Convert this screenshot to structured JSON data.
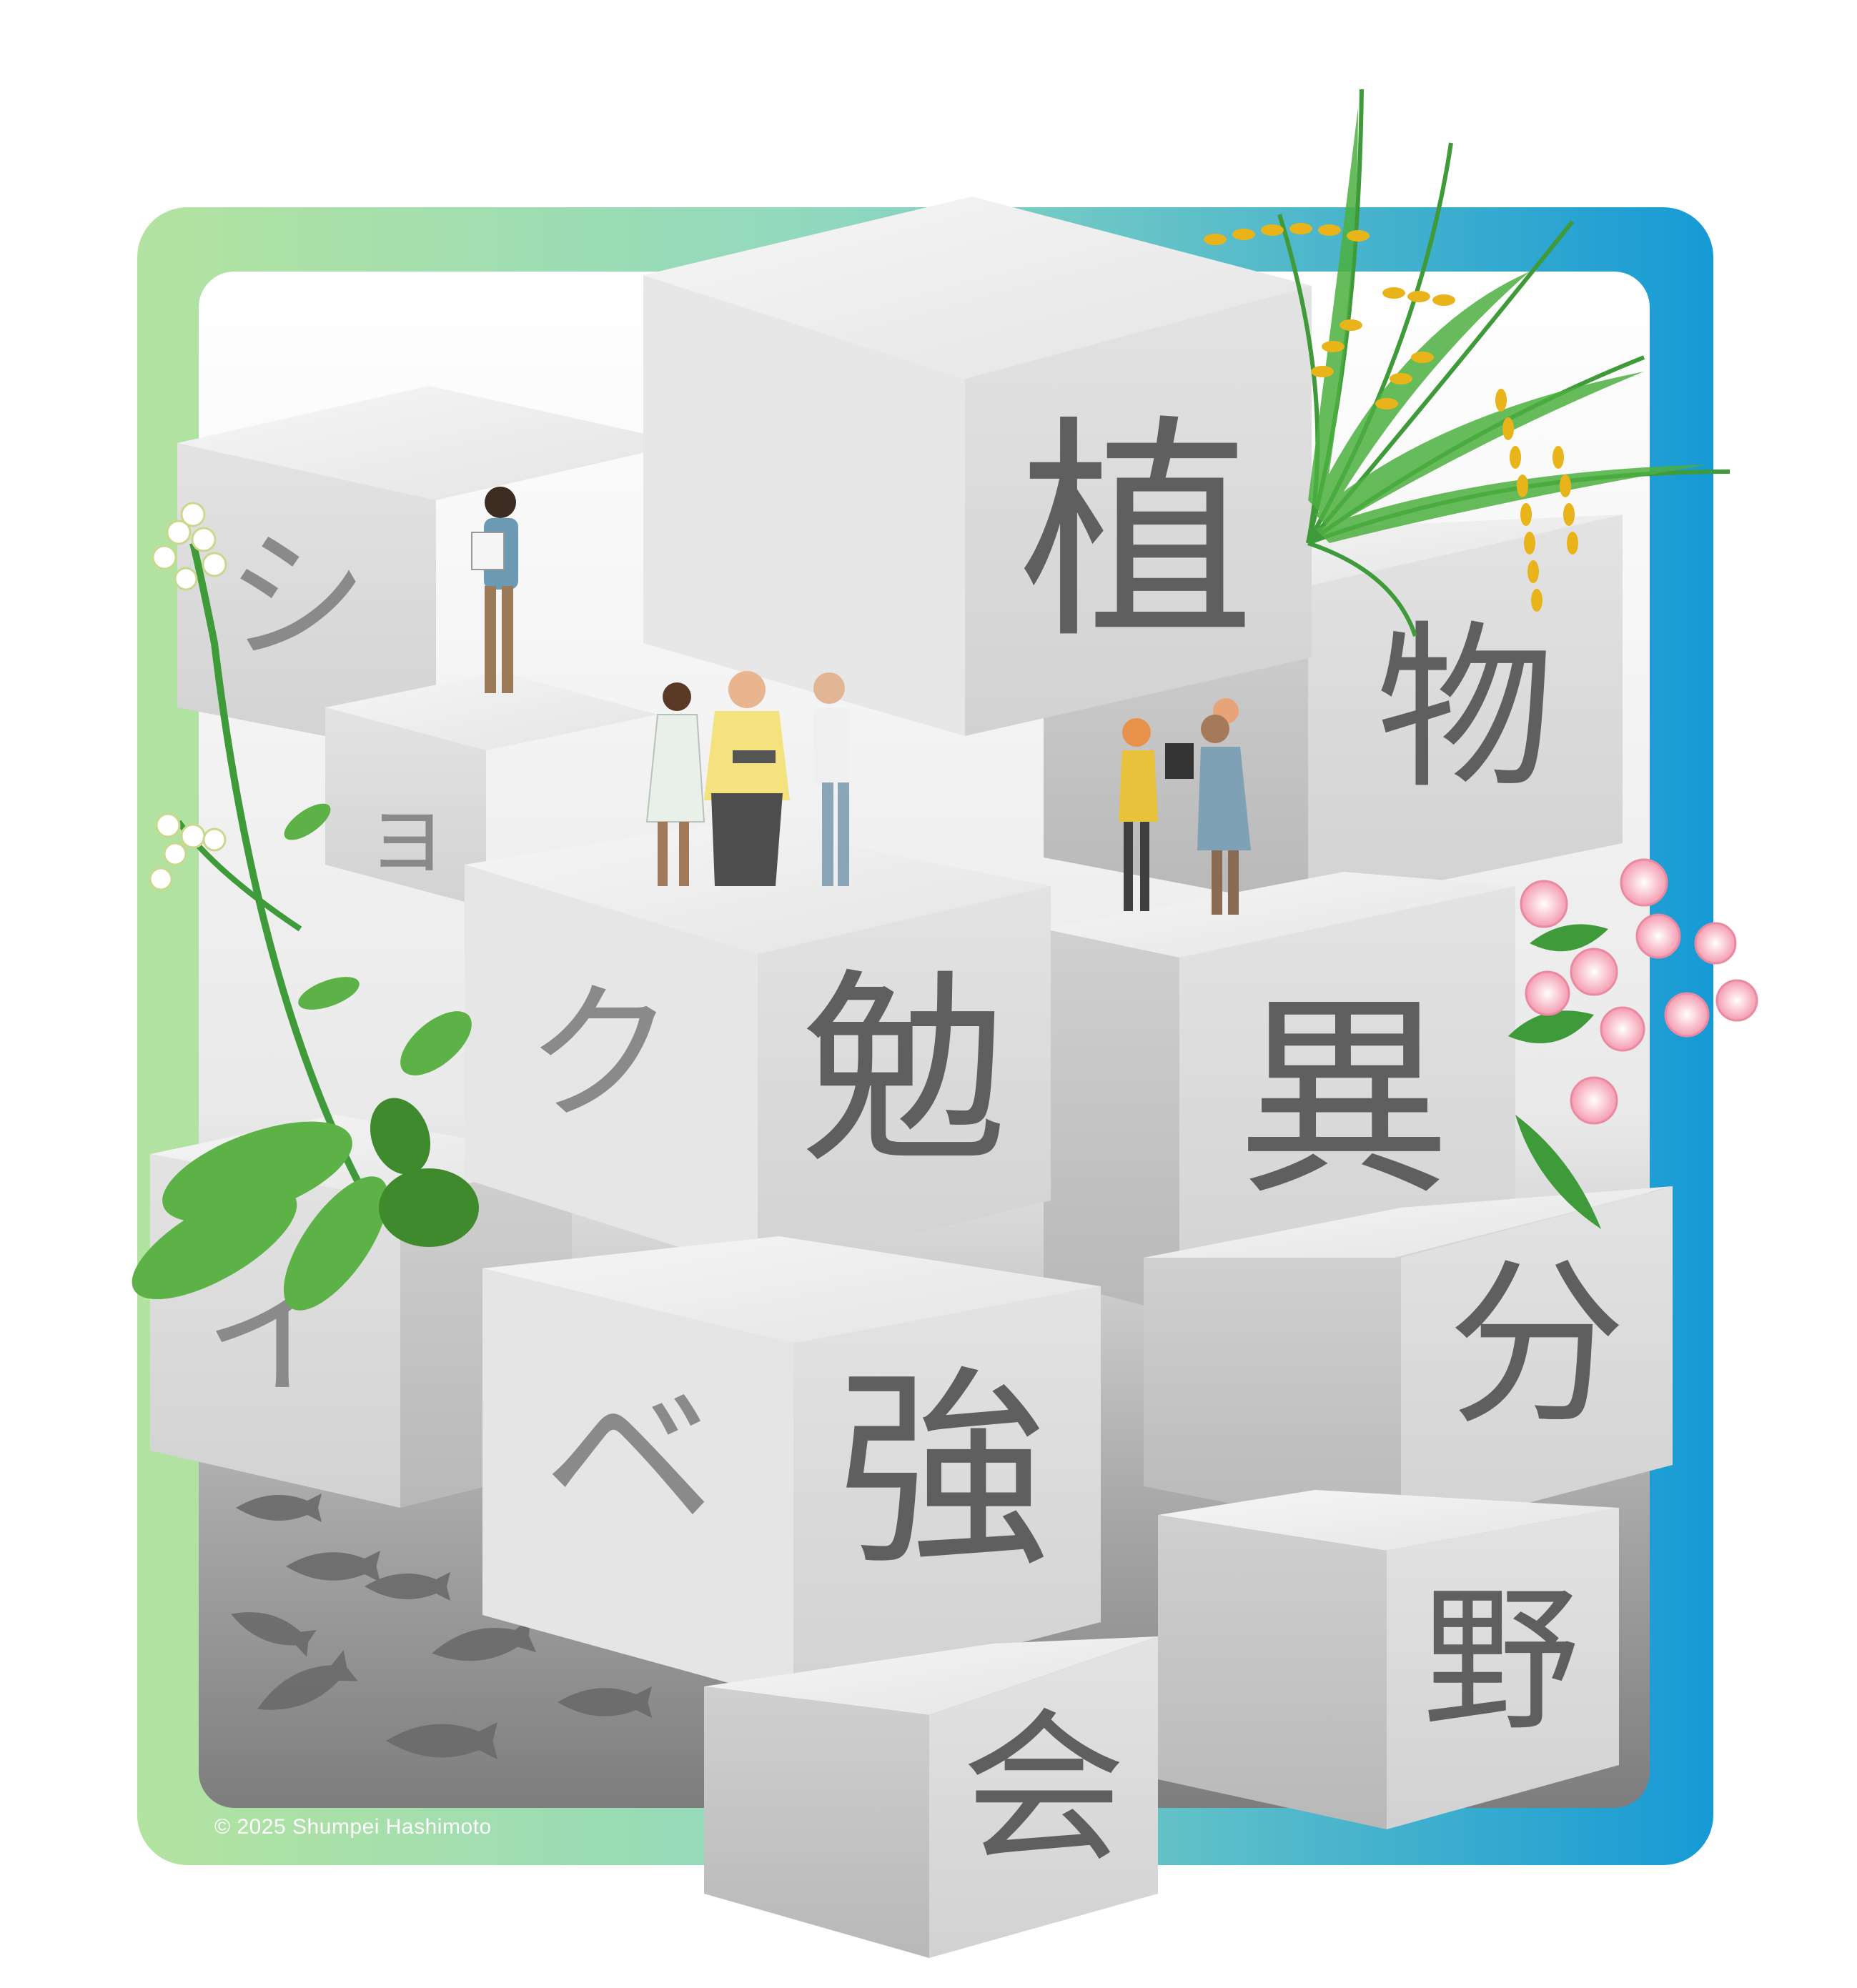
{
  "blocks": {
    "plant": "植",
    "thing": "物",
    "study": "勉",
    "different": "異",
    "strong": "強",
    "divide": "分",
    "field": "野",
    "meeting": "会",
    "shi": "シ",
    "yo": "ョ",
    "ku": "ク",
    "be": "ベ",
    "i": "イ"
  },
  "credit": "© 2025 Shumpei Hashimoto",
  "colors": {
    "frame_left": "#b5e3a0",
    "frame_right": "#1a9ed6",
    "glyph": "#5f5f5f",
    "cube_light": "#eeeeee",
    "cube_mid": "#d9d9d9",
    "cube_dark": "#bdbdbd"
  }
}
